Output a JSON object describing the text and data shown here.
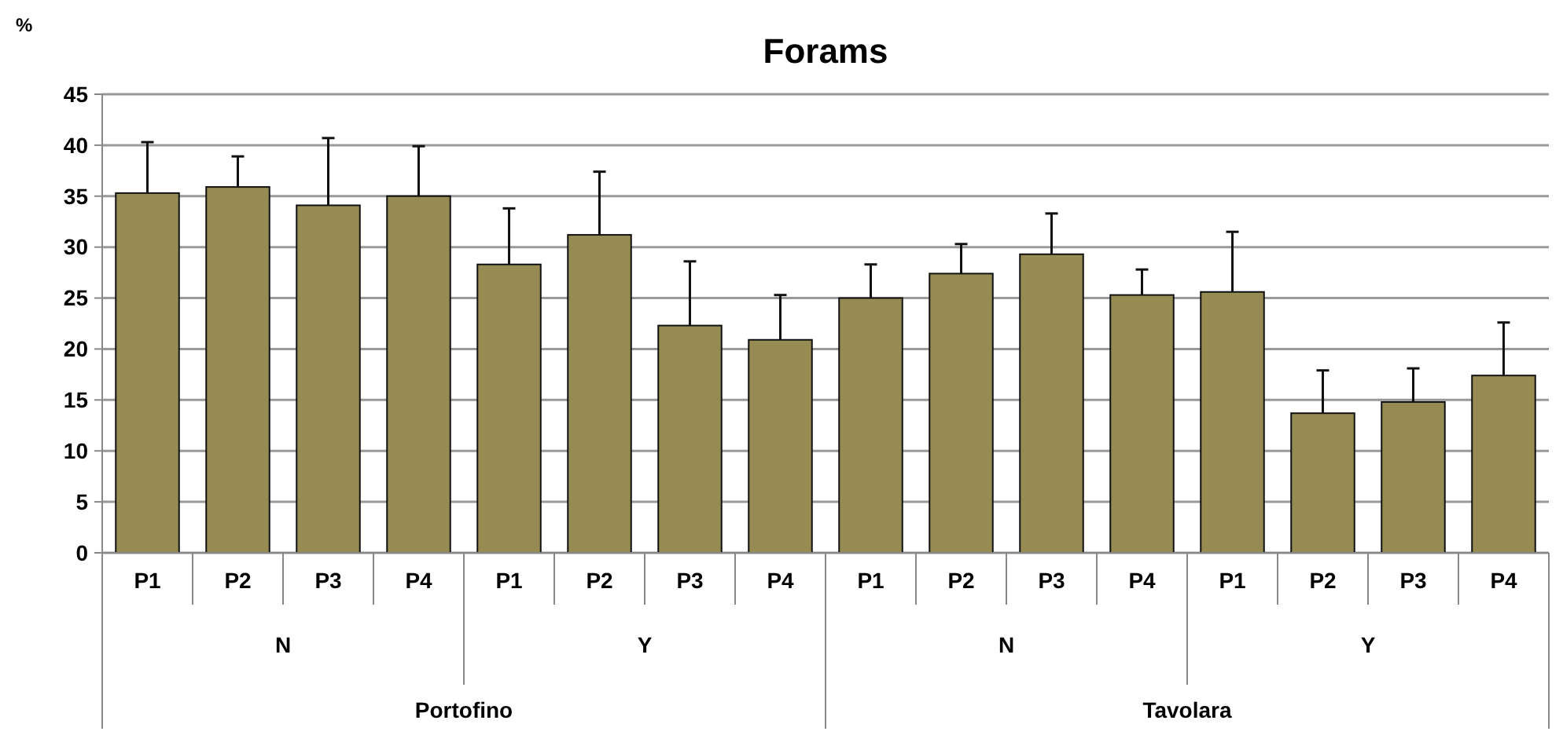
{
  "chart_data": {
    "type": "bar",
    "title": "Forams",
    "ylabel": "%",
    "categories": [
      "P1",
      "P2",
      "P3",
      "P4",
      "P1",
      "P2",
      "P3",
      "P4",
      "P1",
      "P2",
      "P3",
      "P4",
      "P1",
      "P2",
      "P3",
      "P4"
    ],
    "values": [
      35.3,
      35.9,
      34.1,
      35.0,
      28.3,
      31.2,
      22.3,
      20.9,
      25.0,
      27.4,
      29.3,
      25.3,
      25.6,
      13.7,
      14.8,
      17.4
    ],
    "errors": [
      [
        35.3,
        40.3
      ],
      [
        35.9,
        38.9
      ],
      [
        34.1,
        40.7
      ],
      [
        35.0,
        39.9
      ],
      [
        28.3,
        33.8
      ],
      [
        31.2,
        37.4
      ],
      [
        22.3,
        28.6
      ],
      [
        20.9,
        25.3
      ],
      [
        25.0,
        28.3
      ],
      [
        27.4,
        30.3
      ],
      [
        29.3,
        33.3
      ],
      [
        25.3,
        27.8
      ],
      [
        25.6,
        31.5
      ],
      [
        13.7,
        17.9
      ],
      [
        14.8,
        18.1
      ],
      [
        17.4,
        22.6
      ]
    ],
    "color": "#958b53",
    "ylim": [
      0,
      45
    ],
    "yticks": [
      0,
      5,
      10,
      15,
      20,
      25,
      30,
      35,
      40,
      45
    ],
    "grid": "y",
    "annotations": [
      "N",
      "Y",
      "N",
      "Y",
      "Portofino",
      "Tavolara"
    ]
  }
}
